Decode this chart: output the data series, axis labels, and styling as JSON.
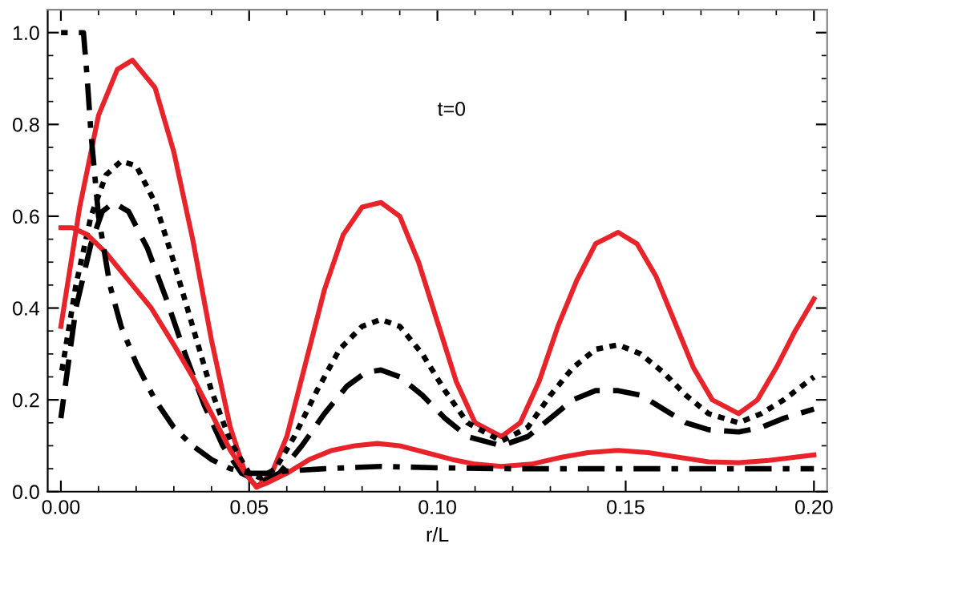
{
  "chart_data": {
    "type": "line",
    "xlabel": "r/L",
    "annotations": [
      "t=0"
    ],
    "xlim": [
      -0.0035,
      0.2035
    ],
    "ylim": [
      0,
      1.05
    ],
    "xticks": [
      {
        "value": 0,
        "label": "0.00"
      },
      {
        "value": 0.05,
        "label": "0.05"
      },
      {
        "value": 0.1,
        "label": "0.10"
      },
      {
        "value": 0.15,
        "label": "0.15"
      },
      {
        "value": 0.2,
        "label": "0.20"
      }
    ],
    "yticks": [
      {
        "value": 0,
        "label": "0.0"
      },
      {
        "value": 0.2,
        "label": "0.2"
      },
      {
        "value": 0.4,
        "label": "0.4"
      },
      {
        "value": 0.6,
        "label": "0.6"
      },
      {
        "value": 0.8,
        "label": "0.8"
      },
      {
        "value": 1,
        "label": "1.0"
      }
    ],
    "grid": false,
    "legend": false,
    "marker": "none",
    "series": [
      {
        "color": "#e8232a",
        "line_style": "solid",
        "x": [
          0,
          0.005,
          0.01,
          0.015,
          0.019,
          0.025,
          0.03,
          0.035,
          0.04,
          0.045,
          0.049,
          0.052,
          0.056,
          0.06,
          0.065,
          0.07,
          0.075,
          0.08,
          0.085,
          0.09,
          0.095,
          0.1,
          0.105,
          0.11,
          0.117,
          0.122,
          0.127,
          0.132,
          0.137,
          0.142,
          0.148,
          0.153,
          0.158,
          0.163,
          0.168,
          0.173,
          0.18,
          0.185,
          0.19,
          0.195,
          0.2
        ],
        "values": [
          0.36,
          0.62,
          0.82,
          0.92,
          0.94,
          0.88,
          0.74,
          0.55,
          0.33,
          0.14,
          0.04,
          0.01,
          0.04,
          0.12,
          0.28,
          0.44,
          0.56,
          0.62,
          0.63,
          0.6,
          0.5,
          0.37,
          0.24,
          0.15,
          0.12,
          0.15,
          0.24,
          0.36,
          0.46,
          0.54,
          0.565,
          0.54,
          0.47,
          0.37,
          0.27,
          0.2,
          0.17,
          0.2,
          0.27,
          0.35,
          0.42
        ]
      },
      {
        "color": "#000000",
        "line_style": "dotted",
        "x": [
          0,
          0.004,
          0.008,
          0.012,
          0.016,
          0.02,
          0.025,
          0.03,
          0.035,
          0.04,
          0.045,
          0.05,
          0.053,
          0.057,
          0.062,
          0.068,
          0.074,
          0.08,
          0.085,
          0.09,
          0.096,
          0.102,
          0.108,
          0.117,
          0.124,
          0.13,
          0.136,
          0.142,
          0.148,
          0.154,
          0.16,
          0.166,
          0.172,
          0.18,
          0.186,
          0.192,
          0.2
        ],
        "values": [
          0.25,
          0.45,
          0.6,
          0.69,
          0.72,
          0.71,
          0.63,
          0.5,
          0.36,
          0.22,
          0.11,
          0.04,
          0.03,
          0.05,
          0.12,
          0.22,
          0.31,
          0.36,
          0.375,
          0.36,
          0.3,
          0.22,
          0.15,
          0.11,
          0.14,
          0.21,
          0.27,
          0.31,
          0.32,
          0.3,
          0.26,
          0.21,
          0.17,
          0.15,
          0.17,
          0.2,
          0.25
        ]
      },
      {
        "color": "#000000",
        "line_style": "dashed",
        "x": [
          0,
          0.004,
          0.008,
          0.011,
          0.014,
          0.018,
          0.023,
          0.028,
          0.033,
          0.038,
          0.043,
          0.048,
          0.053,
          0.058,
          0.064,
          0.07,
          0.076,
          0.081,
          0.085,
          0.09,
          0.096,
          0.102,
          0.108,
          0.117,
          0.124,
          0.13,
          0.136,
          0.142,
          0.148,
          0.154,
          0.16,
          0.166,
          0.172,
          0.18,
          0.186,
          0.192,
          0.2
        ],
        "values": [
          0.16,
          0.4,
          0.54,
          0.61,
          0.63,
          0.61,
          0.53,
          0.42,
          0.3,
          0.19,
          0.1,
          0.04,
          0.02,
          0.04,
          0.1,
          0.17,
          0.23,
          0.26,
          0.265,
          0.25,
          0.21,
          0.16,
          0.12,
          0.1,
          0.12,
          0.16,
          0.2,
          0.22,
          0.22,
          0.21,
          0.18,
          0.15,
          0.135,
          0.13,
          0.14,
          0.16,
          0.18
        ]
      },
      {
        "color": "#e8232a",
        "line_style": "solid",
        "x": [
          0,
          0.003,
          0.007,
          0.012,
          0.018,
          0.024,
          0.03,
          0.035,
          0.04,
          0.045,
          0.049,
          0.052,
          0.055,
          0.06,
          0.066,
          0.072,
          0.078,
          0.084,
          0.09,
          0.097,
          0.104,
          0.11,
          0.117,
          0.125,
          0.133,
          0.14,
          0.148,
          0.156,
          0.164,
          0.172,
          0.18,
          0.188,
          0.195,
          0.2
        ],
        "values": [
          0.575,
          0.575,
          0.56,
          0.52,
          0.46,
          0.4,
          0.32,
          0.25,
          0.17,
          0.09,
          0.04,
          0.01,
          0.02,
          0.04,
          0.07,
          0.09,
          0.1,
          0.105,
          0.1,
          0.085,
          0.07,
          0.06,
          0.055,
          0.06,
          0.075,
          0.085,
          0.09,
          0.085,
          0.075,
          0.065,
          0.063,
          0.068,
          0.075,
          0.08
        ]
      },
      {
        "color": "#000000",
        "line_style": "dashdot",
        "x": [
          0,
          0.006,
          0.007,
          0.008,
          0.01,
          0.013,
          0.016,
          0.02,
          0.025,
          0.03,
          0.035,
          0.04,
          0.045,
          0.05,
          0.055,
          0.06,
          0.07,
          0.085,
          0.1,
          0.12,
          0.15,
          0.2
        ],
        "values": [
          1.0,
          1.0,
          0.9,
          0.78,
          0.6,
          0.45,
          0.36,
          0.28,
          0.2,
          0.14,
          0.1,
          0.07,
          0.05,
          0.04,
          0.04,
          0.045,
          0.05,
          0.055,
          0.052,
          0.05,
          0.05,
          0.05
        ]
      }
    ]
  }
}
